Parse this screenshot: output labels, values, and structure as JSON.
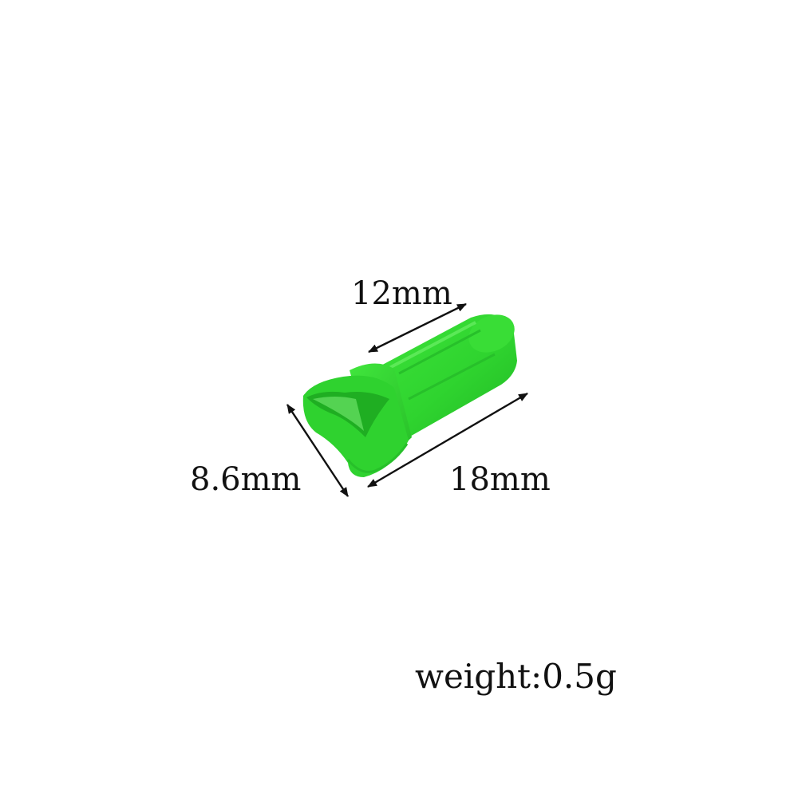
{
  "dimensions": {
    "length_label": "18mm",
    "shank_label": "12mm",
    "diameter_label": "8.6mm"
  },
  "weight_label": "weight:0.5g",
  "colors": {
    "nock_body": "#2fd92f",
    "nock_shadow": "#1fae22",
    "nock_highlight": "#8ef58a",
    "text": "#111111",
    "background": "#ffffff"
  },
  "icons": {
    "product": "arrow-nock"
  }
}
